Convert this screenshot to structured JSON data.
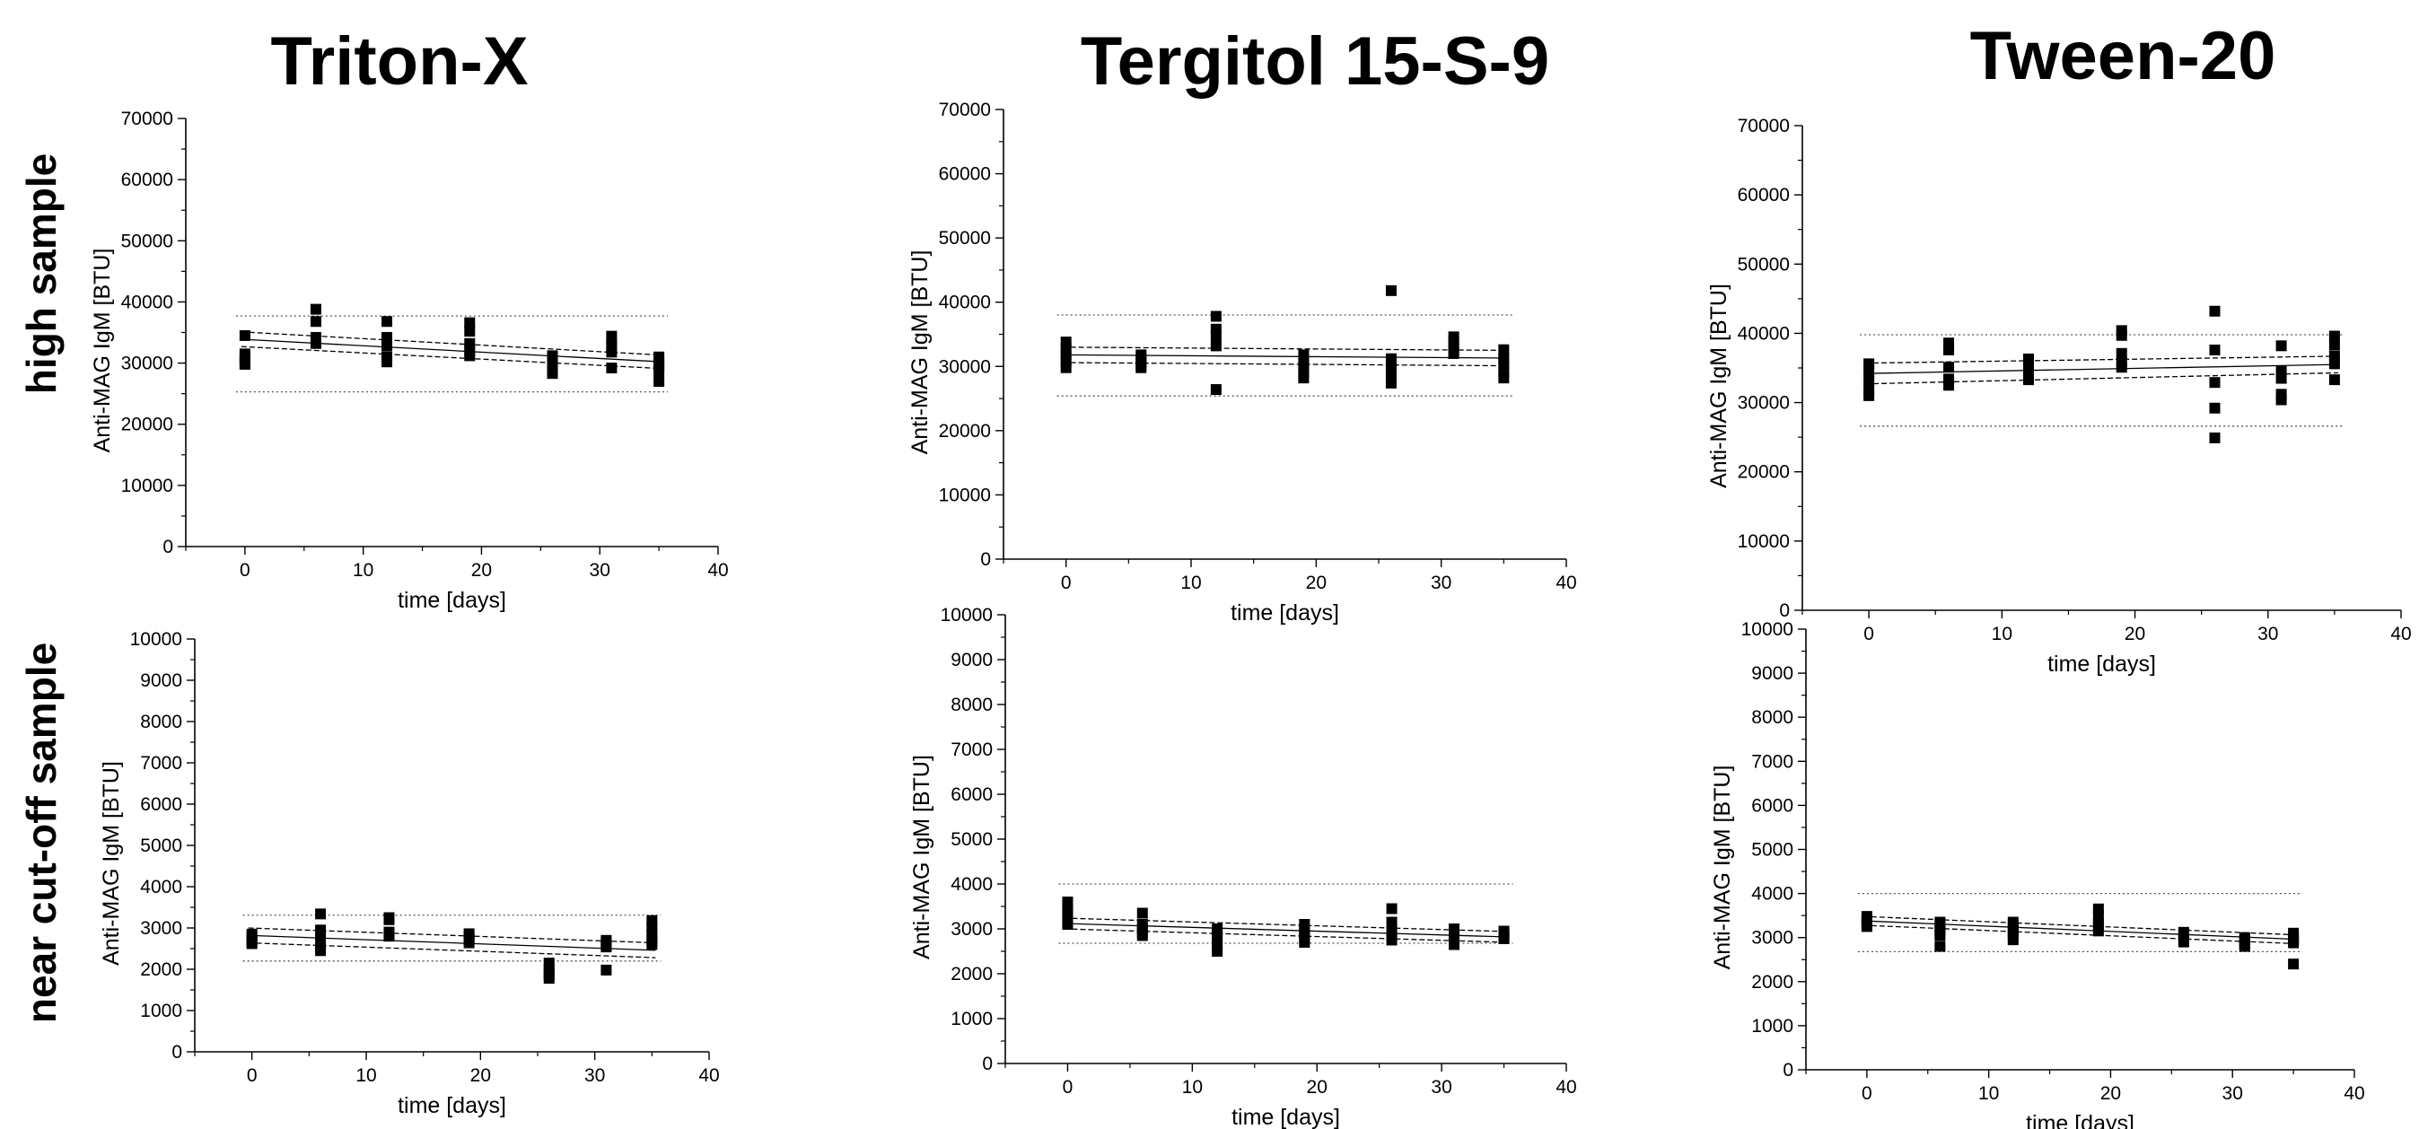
{
  "column_titles": [
    "Triton-X",
    "Tergitol 15-S-9",
    "Tween-20"
  ],
  "row_titles": [
    "high sample",
    "near cut-off sample"
  ],
  "chart_data": [
    {
      "type": "scatter",
      "panel": "Triton-X / high sample",
      "xlabel": "time [days]",
      "ylabel": "Anti-MAG IgM [BTU]",
      "xlim": [
        -5,
        40
      ],
      "ylim": [
        0,
        70000
      ],
      "xticks": [
        0,
        10,
        20,
        30,
        40
      ],
      "yticks": [
        0,
        10000,
        20000,
        30000,
        40000,
        50000,
        60000,
        70000
      ],
      "x": [
        0,
        0,
        0,
        0,
        0,
        6,
        6,
        6,
        6,
        6,
        12,
        12,
        12,
        12,
        12,
        19,
        19,
        19,
        19,
        19,
        26,
        26,
        26,
        26,
        26,
        31,
        31,
        31,
        31,
        31,
        35,
        35,
        35,
        35,
        35
      ],
      "y": [
        34500,
        31500,
        30800,
        30200,
        29800,
        38800,
        36800,
        34200,
        33600,
        33200,
        36800,
        34200,
        32800,
        31000,
        30200,
        36600,
        35200,
        33200,
        32000,
        31200,
        31200,
        30600,
        29800,
        28800,
        28300,
        34400,
        33200,
        32600,
        31800,
        29200,
        31000,
        30100,
        29400,
        28600,
        27000
      ],
      "fit": {
        "at_x0": 33900,
        "at_x35": 30200,
        "ci_upper": [
          35100,
          31300
        ],
        "ci_lower": [
          32700,
          29100
        ]
      },
      "limits": [
        37700,
        25300
      ]
    },
    {
      "type": "scatter",
      "panel": "Tergitol 15-S-9 / high sample",
      "xlabel": "time [days]",
      "ylabel": "Anti-MAG IgM [BTU]",
      "xlim": [
        -5,
        40
      ],
      "ylim": [
        0,
        70000
      ],
      "xticks": [
        0,
        10,
        20,
        30,
        40
      ],
      "yticks": [
        0,
        10000,
        20000,
        30000,
        40000,
        50000,
        60000,
        70000
      ],
      "x": [
        0,
        0,
        0,
        0,
        0,
        6,
        6,
        6,
        6,
        6,
        12,
        12,
        12,
        12,
        12,
        19,
        19,
        19,
        19,
        19,
        26,
        26,
        26,
        26,
        26,
        31,
        31,
        31,
        31,
        31,
        35,
        35,
        35,
        35,
        35
      ],
      "y": [
        33800,
        32800,
        31800,
        30800,
        29800,
        31800,
        31200,
        30600,
        30200,
        29800,
        37800,
        35800,
        34800,
        33200,
        26400,
        31800,
        30800,
        30000,
        29000,
        28200,
        41800,
        31200,
        29800,
        28600,
        27400,
        34600,
        33800,
        33000,
        32200,
        32000,
        32600,
        31200,
        30400,
        29200,
        28200
      ],
      "fit": {
        "at_x0": 31800,
        "at_x35": 31300,
        "ci_upper": [
          33000,
          32500
        ],
        "ci_lower": [
          30600,
          30100
        ]
      },
      "limits": [
        38000,
        25400
      ]
    },
    {
      "type": "scatter",
      "panel": "Tween-20 / high sample",
      "xlabel": "time [days]",
      "ylabel": "Anti-MAG IgM [BTU]",
      "xlim": [
        -5,
        40
      ],
      "ylim": [
        0,
        70000
      ],
      "xticks": [
        0,
        10,
        20,
        30,
        40
      ],
      "yticks": [
        0,
        10000,
        20000,
        30000,
        40000,
        50000,
        60000,
        70000
      ],
      "x": [
        0,
        0,
        0,
        0,
        0,
        6,
        6,
        6,
        6,
        6,
        12,
        12,
        12,
        12,
        12,
        19,
        19,
        19,
        19,
        19,
        26,
        26,
        26,
        26,
        26,
        31,
        31,
        31,
        31,
        31,
        35,
        35,
        35,
        35,
        35
      ],
      "y": [
        35600,
        34500,
        33200,
        31800,
        31000,
        38600,
        37600,
        35100,
        33400,
        32500,
        36300,
        35400,
        34600,
        33600,
        33300,
        40400,
        39700,
        37100,
        35900,
        35100,
        43200,
        37600,
        32900,
        29200,
        24900,
        38200,
        34500,
        33500,
        31200,
        30400,
        39600,
        38300,
        36700,
        35600,
        33300
      ],
      "fit": {
        "at_x0": 34200,
        "at_x35": 35500,
        "ci_upper": [
          35700,
          36700
        ],
        "ci_lower": [
          32700,
          34300
        ]
      },
      "limits": [
        39800,
        26600
      ]
    },
    {
      "type": "scatter",
      "panel": "Triton-X / near cut-off sample",
      "xlabel": "time [days]",
      "ylabel": "Anti-MAG IgM [BTU]",
      "xlim": [
        -5,
        40
      ],
      "ylim": [
        0,
        10000
      ],
      "xticks": [
        0,
        10,
        20,
        30,
        40
      ],
      "yticks": [
        0,
        1000,
        2000,
        3000,
        4000,
        5000,
        6000,
        7000,
        8000,
        9000,
        10000
      ],
      "x": [
        0,
        0,
        0,
        0,
        0,
        6,
        6,
        6,
        6,
        6,
        12,
        12,
        12,
        12,
        12,
        19,
        19,
        19,
        19,
        19,
        26,
        26,
        26,
        26,
        26,
        31,
        31,
        31,
        31,
        31,
        35,
        35,
        35,
        35,
        35
      ],
      "y": [
        2850,
        2780,
        2720,
        2660,
        2620,
        3340,
        2950,
        2820,
        2600,
        2450,
        3250,
        3200,
        2900,
        2840,
        2800,
        2860,
        2800,
        2760,
        2700,
        2640,
        2150,
        2020,
        1900,
        1850,
        1780,
        2700,
        2640,
        2580,
        2540,
        1980,
        3180,
        3000,
        2850,
        2700,
        2600
      ],
      "fit": {
        "at_x0": 2820,
        "at_x35": 2460,
        "ci_upper": [
          3000,
          2640
        ],
        "ci_lower": [
          2640,
          2280
        ]
      },
      "limits": [
        3310,
        2200
      ]
    },
    {
      "type": "scatter",
      "panel": "Tergitol 15-S-9 / near cut-off sample",
      "xlabel": "time [days]",
      "ylabel": "Anti-MAG IgM [BTU]",
      "xlim": [
        -5,
        40
      ],
      "ylim": [
        0,
        10000
      ],
      "xticks": [
        0,
        10,
        20,
        30,
        40
      ],
      "yticks": [
        0,
        1000,
        2000,
        3000,
        4000,
        5000,
        6000,
        7000,
        8000,
        9000,
        10000
      ],
      "x": [
        0,
        0,
        0,
        0,
        0,
        6,
        6,
        6,
        6,
        6,
        12,
        12,
        12,
        12,
        12,
        19,
        19,
        19,
        19,
        19,
        26,
        26,
        26,
        26,
        26,
        31,
        31,
        31,
        31,
        31,
        35,
        35,
        35,
        35,
        35
      ],
      "y": [
        3600,
        3450,
        3350,
        3200,
        3100,
        3350,
        3100,
        3000,
        2920,
        2850,
        3000,
        2900,
        2800,
        2650,
        2500,
        3100,
        3000,
        2900,
        2800,
        2700,
        3450,
        3150,
        2950,
        2850,
        2750,
        3000,
        2900,
        2850,
        2750,
        2650,
        2950,
        2900,
        2850,
        2800,
        2780
      ],
      "fit": {
        "at_x0": 3120,
        "at_x35": 2820,
        "ci_upper": [
          3240,
          2940
        ],
        "ci_lower": [
          3000,
          2700
        ]
      },
      "limits": [
        4000,
        2680
      ]
    },
    {
      "type": "scatter",
      "panel": "Tween-20 / near cut-off sample",
      "xlabel": "time [days]",
      "ylabel": "Anti-MAG IgM [BTU]",
      "xlim": [
        -5,
        40
      ],
      "ylim": [
        0,
        10000
      ],
      "xticks": [
        0,
        10,
        20,
        30,
        40
      ],
      "yticks": [
        0,
        1000,
        2000,
        3000,
        4000,
        5000,
        6000,
        7000,
        8000,
        9000,
        10000
      ],
      "x": [
        0,
        0,
        0,
        0,
        0,
        6,
        6,
        6,
        6,
        6,
        12,
        12,
        12,
        12,
        12,
        19,
        19,
        19,
        19,
        19,
        26,
        26,
        26,
        26,
        26,
        31,
        31,
        31,
        31,
        31,
        35,
        35,
        35,
        35,
        35
      ],
      "y": [
        3480,
        3400,
        3350,
        3300,
        3250,
        3350,
        3250,
        3150,
        3050,
        2800,
        3350,
        3250,
        3150,
        3050,
        2950,
        3650,
        3500,
        3350,
        3250,
        3150,
        3120,
        3050,
        3000,
        2950,
        2900,
        3000,
        2950,
        2900,
        2850,
        2800,
        3100,
        3000,
        2950,
        2880,
        2400
      ],
      "fit": {
        "at_x0": 3380,
        "at_x35": 2960,
        "ci_upper": [
          3480,
          3060
        ],
        "ci_lower": [
          3280,
          2860
        ]
      },
      "limits": [
        4000,
        2680
      ]
    }
  ]
}
